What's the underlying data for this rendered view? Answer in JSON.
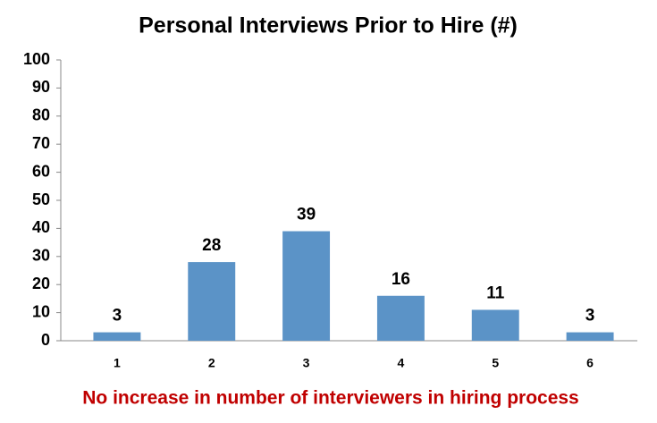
{
  "chart_data": {
    "type": "bar",
    "title": "Personal Interviews Prior to Hire (#)",
    "categories": [
      "1",
      "2",
      "3",
      "4",
      "5",
      "6"
    ],
    "values": [
      3,
      28,
      39,
      16,
      11,
      3
    ],
    "color": "#5b93c7",
    "ylim": [
      0,
      100
    ],
    "yticks": [
      0,
      10,
      20,
      30,
      40,
      50,
      60,
      70,
      80,
      90,
      100
    ],
    "grid": false,
    "annotation": "No increase in number of interviewers in hiring process"
  }
}
